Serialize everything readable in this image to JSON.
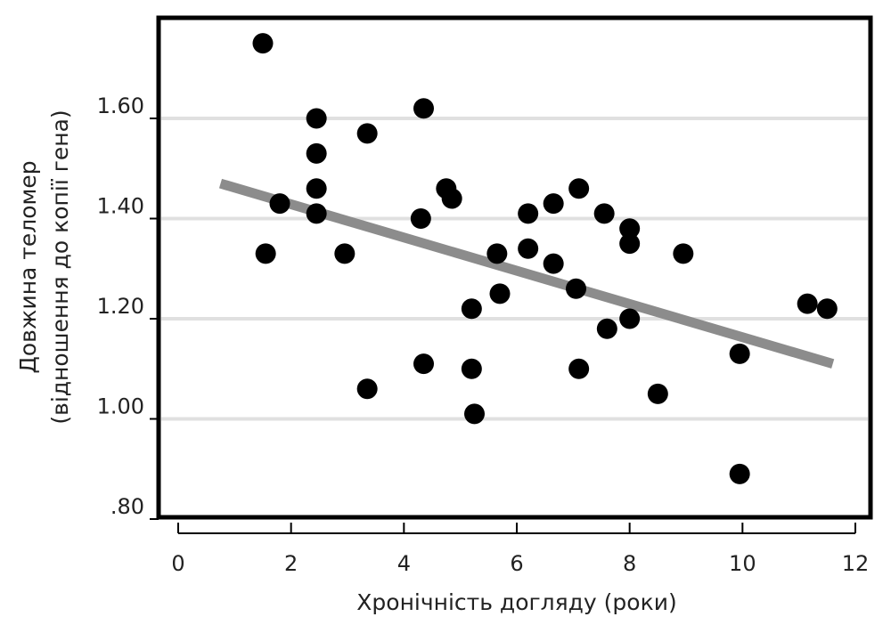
{
  "chart_data": {
    "type": "scatter",
    "xlabel": "Хронічність догляду (роки)",
    "ylabel_line1": "Довжина теломер",
    "ylabel_line2": "(відношення до копії гена)",
    "xlim": [
      0,
      12
    ],
    "ylim": [
      0.8,
      1.76
    ],
    "x_ticks": [
      0,
      2,
      4,
      6,
      8,
      10,
      12
    ],
    "x_tick_labels": [
      "0",
      "2",
      "4",
      "6",
      "8",
      "10",
      "12"
    ],
    "y_ticks": [
      0.8,
      1.0,
      1.2,
      1.4,
      1.6
    ],
    "y_tick_labels": [
      ".80",
      "1.00",
      "1.20",
      "1.40",
      "1.60"
    ],
    "grid": "horizontal",
    "colors": {
      "points": "#000000",
      "trend": "#8c8c8c",
      "grid": "#e0e0e0",
      "frame": "#000000"
    },
    "points": [
      {
        "x": 1.5,
        "y": 1.75
      },
      {
        "x": 1.55,
        "y": 1.33
      },
      {
        "x": 1.8,
        "y": 1.43
      },
      {
        "x": 2.45,
        "y": 1.6
      },
      {
        "x": 2.45,
        "y": 1.53
      },
      {
        "x": 2.45,
        "y": 1.46
      },
      {
        "x": 2.45,
        "y": 1.41
      },
      {
        "x": 2.95,
        "y": 1.33
      },
      {
        "x": 3.35,
        "y": 1.57
      },
      {
        "x": 3.35,
        "y": 1.06
      },
      {
        "x": 4.35,
        "y": 1.62
      },
      {
        "x": 4.3,
        "y": 1.4
      },
      {
        "x": 4.35,
        "y": 1.11
      },
      {
        "x": 4.75,
        "y": 1.46
      },
      {
        "x": 4.85,
        "y": 1.44
      },
      {
        "x": 5.2,
        "y": 1.22
      },
      {
        "x": 5.2,
        "y": 1.1
      },
      {
        "x": 5.25,
        "y": 1.01
      },
      {
        "x": 5.65,
        "y": 1.33
      },
      {
        "x": 5.7,
        "y": 1.25
      },
      {
        "x": 6.2,
        "y": 1.41
      },
      {
        "x": 6.2,
        "y": 1.34
      },
      {
        "x": 6.65,
        "y": 1.43
      },
      {
        "x": 6.65,
        "y": 1.31
      },
      {
        "x": 7.05,
        "y": 1.26
      },
      {
        "x": 7.1,
        "y": 1.46
      },
      {
        "x": 7.1,
        "y": 1.1
      },
      {
        "x": 7.55,
        "y": 1.41
      },
      {
        "x": 7.6,
        "y": 1.18
      },
      {
        "x": 8.0,
        "y": 1.38
      },
      {
        "x": 8.0,
        "y": 1.35
      },
      {
        "x": 8.0,
        "y": 1.2
      },
      {
        "x": 8.5,
        "y": 1.05
      },
      {
        "x": 8.95,
        "y": 1.33
      },
      {
        "x": 9.95,
        "y": 1.13
      },
      {
        "x": 9.95,
        "y": 0.89
      },
      {
        "x": 11.15,
        "y": 1.23
      },
      {
        "x": 11.5,
        "y": 1.22
      }
    ],
    "trend_line": {
      "x": [
        0.75,
        11.6
      ],
      "y": [
        1.47,
        1.11
      ]
    }
  }
}
